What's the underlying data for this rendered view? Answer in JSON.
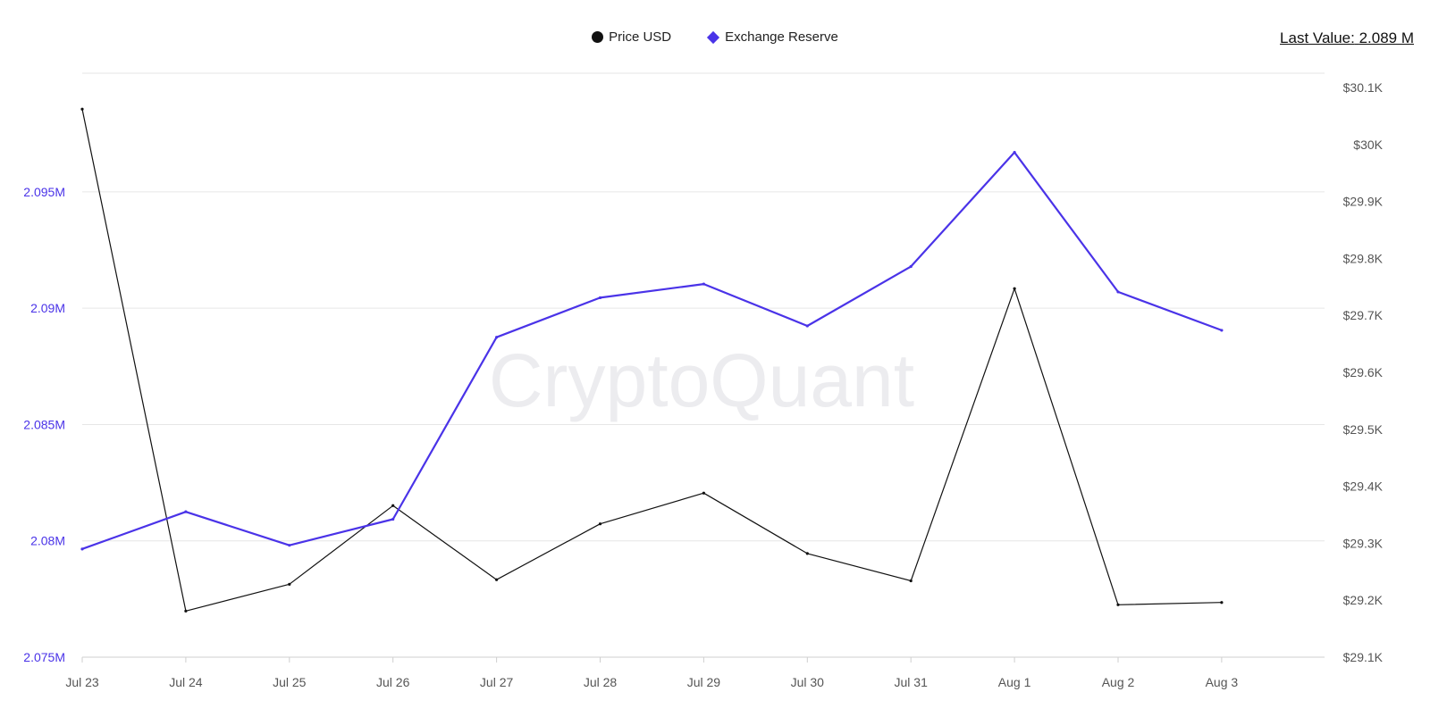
{
  "colors": {
    "price": "#111111",
    "reserve": "#4a33e8",
    "grid": "#e6e6e6"
  },
  "watermark": "CryptoQuant",
  "last_value": {
    "label": "Last Value:",
    "value": "2.089 M"
  },
  "chart_data": {
    "type": "line",
    "legend_position": "top-center",
    "grid": true,
    "categories": [
      "Jul 23",
      "Jul 24",
      "Jul 25",
      "Jul 26",
      "Jul 27",
      "Jul 28",
      "Jul 29",
      "Jul 30",
      "Jul 31",
      "Aug 1",
      "Aug 2",
      "Aug 3"
    ],
    "series": [
      {
        "name": "Price USD",
        "axis": "right",
        "marker": "circle",
        "color": "#111111",
        "values": [
          30062,
          29181,
          29228,
          29366,
          29236,
          29334,
          29388,
          29282,
          29234,
          29747,
          29192,
          29196
        ]
      },
      {
        "name": "Exchange Reserve",
        "axis": "left",
        "marker": "diamond",
        "color": "#4a33e8",
        "values": [
          2079650,
          2081250,
          2079810,
          2080930,
          2088750,
          2090450,
          2091040,
          2089240,
          2091790,
          2096700,
          2090700,
          2089050
        ]
      }
    ],
    "y_left": {
      "ticks": [
        2075000,
        2080000,
        2085000,
        2090000,
        2095000
      ],
      "tick_labels": [
        "2.075M",
        "2.08M",
        "2.085M",
        "2.09M",
        "2.095M"
      ],
      "range": [
        2075000,
        2100100
      ]
    },
    "y_right": {
      "ticks": [
        29100,
        29200,
        29300,
        29400,
        29500,
        29600,
        29700,
        29800,
        29900,
        30000,
        30100
      ],
      "tick_labels": [
        "$29.1K",
        "$29.2K",
        "$29.3K",
        "$29.4K",
        "$29.5K",
        "$29.6K",
        "$29.7K",
        "$29.8K",
        "$29.9K",
        "$30K",
        "$30.1K"
      ],
      "range": [
        29100,
        30125
      ]
    }
  }
}
